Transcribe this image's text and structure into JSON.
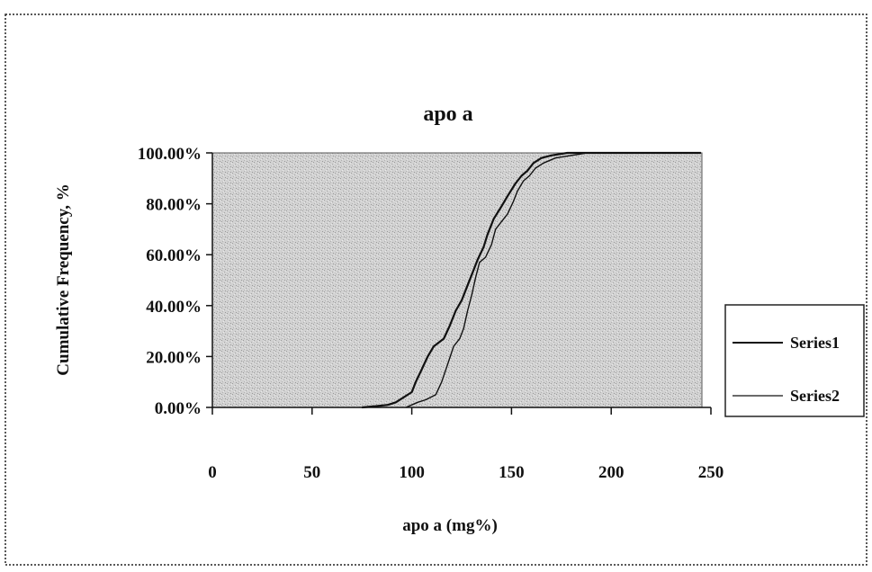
{
  "chart_data": {
    "type": "line",
    "title": "apo a",
    "xlabel": "apo a (mg%)",
    "ylabel": "Cumulative Frequency, %",
    "xlim": [
      0,
      250
    ],
    "ylim": [
      0,
      1
    ],
    "x_ticks": [
      0,
      50,
      100,
      150,
      200,
      250
    ],
    "x_tick_labels": [
      "0",
      "50",
      "100",
      "150",
      "200",
      "250"
    ],
    "y_ticks": [
      0,
      0.2,
      0.4,
      0.6,
      0.8,
      1.0
    ],
    "y_tick_labels": [
      "0.00%",
      "20.00%",
      "40.00%",
      "60.00%",
      "80.00%",
      "100.00%"
    ],
    "grid": false,
    "legend_position": "right",
    "plot_background": "#cfcfcf",
    "line_color": "#111111",
    "series": [
      {
        "name": "Series1",
        "points": [
          [
            75,
            0.0
          ],
          [
            82,
            0.005
          ],
          [
            88,
            0.01
          ],
          [
            92,
            0.02
          ],
          [
            96,
            0.04
          ],
          [
            100,
            0.06
          ],
          [
            102,
            0.1
          ],
          [
            105,
            0.15
          ],
          [
            108,
            0.2
          ],
          [
            111,
            0.24
          ],
          [
            116,
            0.27
          ],
          [
            119,
            0.32
          ],
          [
            122,
            0.38
          ],
          [
            125,
            0.42
          ],
          [
            127,
            0.46
          ],
          [
            130,
            0.52
          ],
          [
            133,
            0.58
          ],
          [
            136,
            0.63
          ],
          [
            138,
            0.68
          ],
          [
            141,
            0.74
          ],
          [
            145,
            0.79
          ],
          [
            148,
            0.83
          ],
          [
            152,
            0.88
          ],
          [
            155,
            0.91
          ],
          [
            158,
            0.93
          ],
          [
            161,
            0.96
          ],
          [
            165,
            0.98
          ],
          [
            170,
            0.99
          ],
          [
            178,
            1.0
          ],
          [
            245,
            1.0
          ]
        ]
      },
      {
        "name": "Series2",
        "points": [
          [
            97,
            0.0
          ],
          [
            100,
            0.01
          ],
          [
            103,
            0.02
          ],
          [
            107,
            0.03
          ],
          [
            112,
            0.05
          ],
          [
            115,
            0.1
          ],
          [
            118,
            0.17
          ],
          [
            121,
            0.24
          ],
          [
            124,
            0.27
          ],
          [
            126,
            0.31
          ],
          [
            128,
            0.38
          ],
          [
            130,
            0.44
          ],
          [
            132,
            0.51
          ],
          [
            134,
            0.57
          ],
          [
            137,
            0.59
          ],
          [
            140,
            0.64
          ],
          [
            142,
            0.7
          ],
          [
            145,
            0.73
          ],
          [
            148,
            0.76
          ],
          [
            151,
            0.81
          ],
          [
            153,
            0.85
          ],
          [
            156,
            0.89
          ],
          [
            159,
            0.91
          ],
          [
            162,
            0.94
          ],
          [
            166,
            0.96
          ],
          [
            172,
            0.98
          ],
          [
            180,
            0.99
          ],
          [
            188,
            1.0
          ],
          [
            245,
            1.0
          ]
        ]
      }
    ]
  }
}
